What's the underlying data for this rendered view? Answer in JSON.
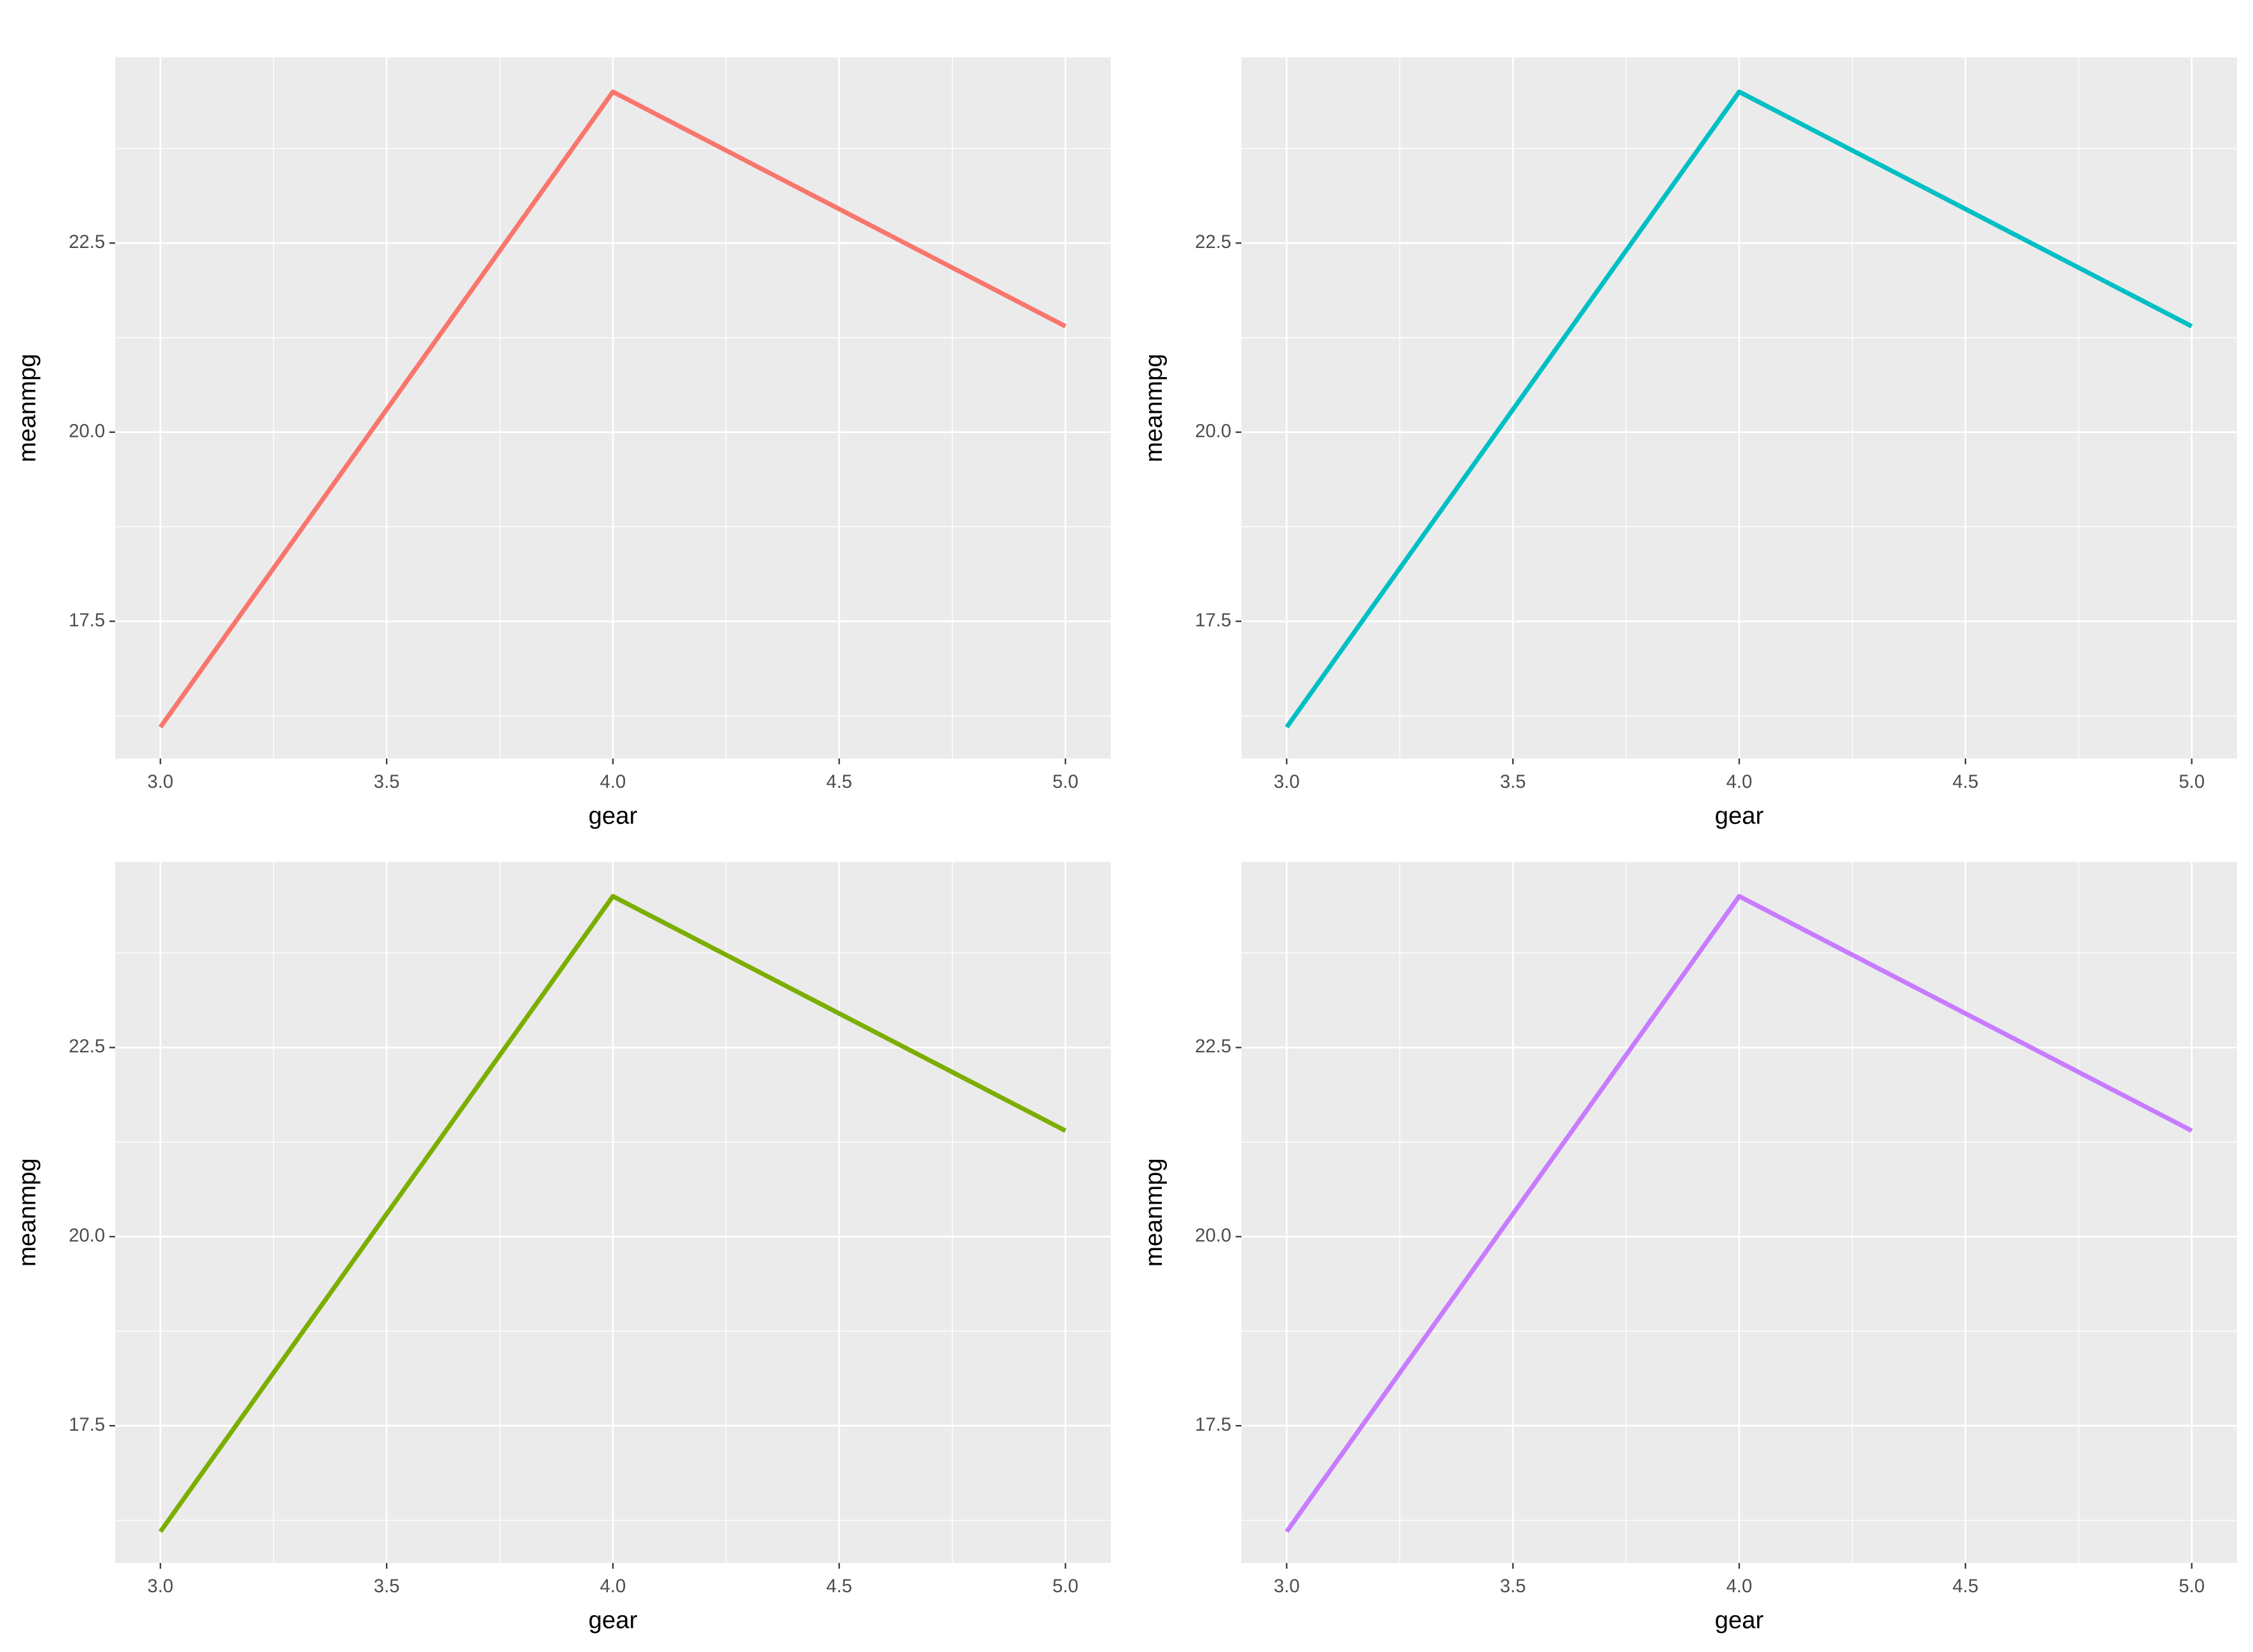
{
  "chart_data": [
    {
      "type": "line",
      "x": [
        3,
        4,
        5
      ],
      "values": [
        16.1,
        24.5,
        21.4
      ],
      "color": "#F8766D",
      "x_label": "gear",
      "y_label": "meanmpg",
      "xlim": [
        2.9,
        5.1
      ],
      "ylim": [
        15.686,
        24.954
      ],
      "xticks": [
        {
          "value": 3,
          "label": "3.0"
        },
        {
          "value": 3.5,
          "label": "3.5"
        },
        {
          "value": 4,
          "label": "4.0"
        },
        {
          "value": 4.5,
          "label": "4.5"
        },
        {
          "value": 5,
          "label": "5.0"
        }
      ],
      "yticks": [
        17.5,
        {
          "value": 20,
          "label": "20.0"
        },
        22.5
      ],
      "grid": true
    },
    {
      "type": "line",
      "x": [
        3,
        4,
        5
      ],
      "values": [
        16.1,
        24.5,
        21.4
      ],
      "color": "#00BFC4",
      "x_label": "gear",
      "y_label": "meanmpg",
      "xlim": [
        2.9,
        5.1
      ],
      "ylim": [
        15.686,
        24.954
      ],
      "xticks": [
        {
          "value": 3,
          "label": "3.0"
        },
        {
          "value": 3.5,
          "label": "3.5"
        },
        {
          "value": 4,
          "label": "4.0"
        },
        {
          "value": 4.5,
          "label": "4.5"
        },
        {
          "value": 5,
          "label": "5.0"
        }
      ],
      "yticks": [
        17.5,
        {
          "value": 20,
          "label": "20.0"
        },
        22.5
      ],
      "grid": true
    },
    {
      "type": "line",
      "x": [
        3,
        4,
        5
      ],
      "values": [
        16.1,
        24.5,
        21.4
      ],
      "color": "#7CAE00",
      "x_label": "gear",
      "y_label": "meanmpg",
      "xlim": [
        2.9,
        5.1
      ],
      "ylim": [
        15.686,
        24.954
      ],
      "xticks": [
        {
          "value": 3,
          "label": "3.0"
        },
        {
          "value": 3.5,
          "label": "3.5"
        },
        {
          "value": 4,
          "label": "4.0"
        },
        {
          "value": 4.5,
          "label": "4.5"
        },
        {
          "value": 5,
          "label": "5.0"
        }
      ],
      "yticks": [
        17.5,
        {
          "value": 20,
          "label": "20.0"
        },
        22.5
      ],
      "grid": true
    },
    {
      "type": "line",
      "x": [
        3,
        4,
        5
      ],
      "values": [
        16.1,
        24.5,
        21.4
      ],
      "color": "#C77CFF",
      "x_label": "gear",
      "y_label": "meanmpg",
      "xlim": [
        2.9,
        5.1
      ],
      "ylim": [
        15.686,
        24.954
      ],
      "xticks": [
        {
          "value": 3,
          "label": "3.0"
        },
        {
          "value": 3.5,
          "label": "3.5"
        },
        {
          "value": 4,
          "label": "4.0"
        },
        {
          "value": 4.5,
          "label": "4.5"
        },
        {
          "value": 5,
          "label": "5.0"
        }
      ],
      "yticks": [
        17.5,
        {
          "value": 20,
          "label": "20.0"
        },
        22.5
      ],
      "grid": true
    }
  ]
}
